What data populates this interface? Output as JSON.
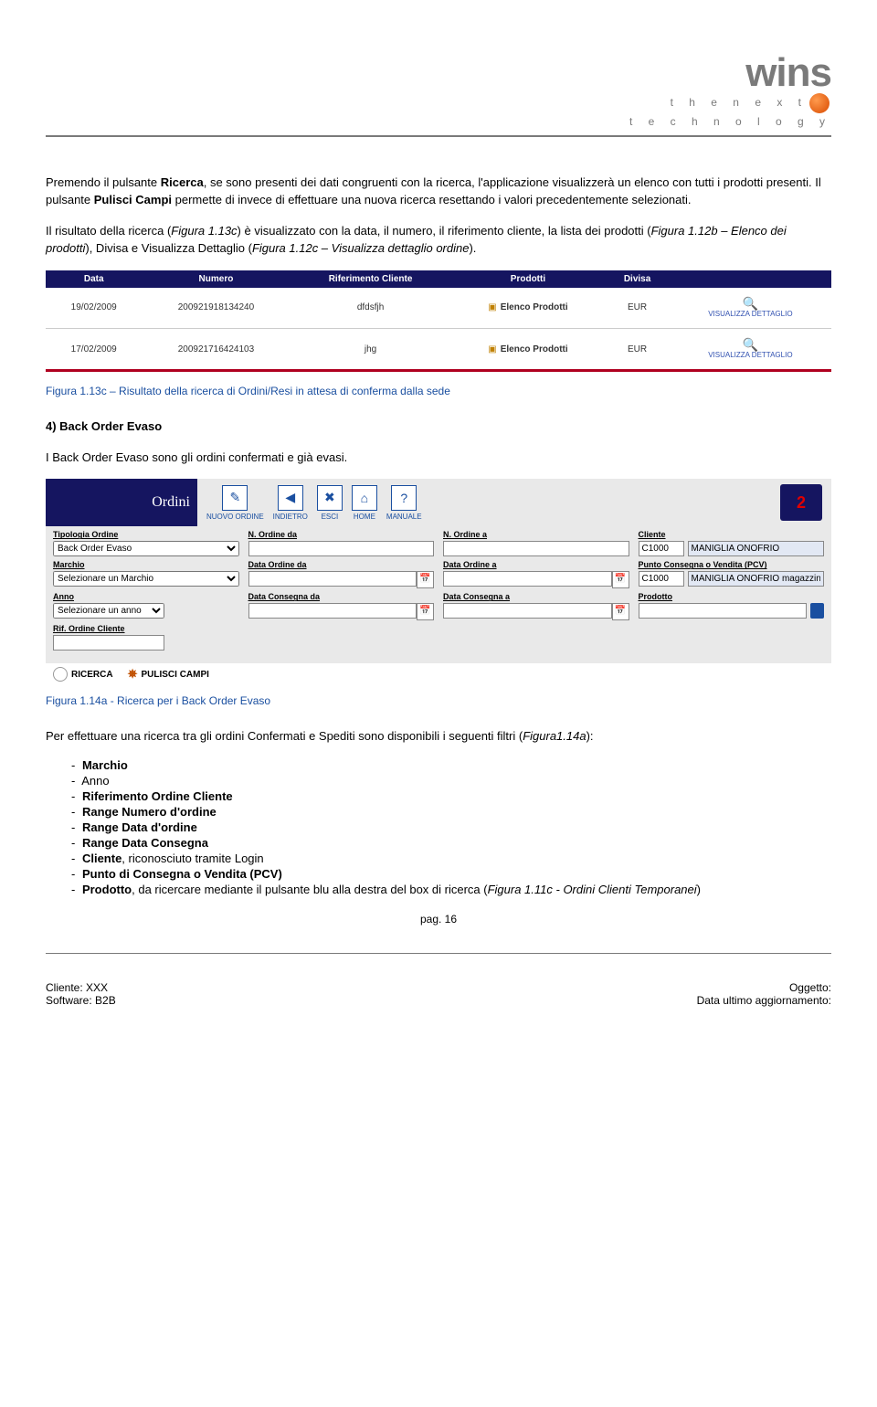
{
  "logo": {
    "main": "wins",
    "tagline1": "t h e   n e x t",
    "tagline2": "t e c h n o l o g y"
  },
  "para1": {
    "t1": "Premendo il pulsante ",
    "b1": "Ricerca",
    "t2": ", se sono presenti dei dati congruenti con la ricerca, l'applicazione visualizzerà un elenco con tutti i prodotti presenti. Il pulsante ",
    "b2": "Pulisci Campi",
    "t3": " permette di invece di effettuare una nuova ricerca resettando i valori precedentemente selezionati."
  },
  "para2": {
    "t1": "Il risultato della ricerca (",
    "i1": "Figura 1.13c",
    "t2": ") è visualizzato con la data, il numero, il riferimento cliente, la lista dei prodotti (",
    "i2": "Figura 1.12b – Elenco dei prodotti",
    "t3": "), Divisa e Visualizza Dettaglio (",
    "i3": "Figura 1.12c – Visualizza dettaglio ordine",
    "t4": ")."
  },
  "tbl1": {
    "headers": [
      "Data",
      "Numero",
      "Riferimento Cliente",
      "Prodotti",
      "Divisa",
      ""
    ],
    "rows": [
      {
        "data": "19/02/2009",
        "num": "200921918134240",
        "rif": "dfdsfjh",
        "prod": "Elenco Prodotti",
        "div": "EUR",
        "vis": "VISUALIZZA DETTAGLIO"
      },
      {
        "data": "17/02/2009",
        "num": "200921716424103",
        "rif": "jhg",
        "prod": "Elenco Prodotti",
        "div": "EUR",
        "vis": "VISUALIZZA DETTAGLIO"
      }
    ]
  },
  "cap1": "Figura 1.13c – Risultato della ricerca di Ordini/Resi in attesa di conferma dalla sede",
  "h4": "4) Back Order Evaso",
  "para3": "I Back Order Evaso sono gli ordini confermati e già evasi.",
  "scr2": {
    "title": "Ordini",
    "icons": [
      {
        "lbl": "NUOVO ORDINE",
        "g": "✎"
      },
      {
        "lbl": "INDIETRO",
        "g": "◀"
      },
      {
        "lbl": "ESCI",
        "g": "✖"
      },
      {
        "lbl": "HOME",
        "g": "⌂"
      },
      {
        "lbl": "MANUALE",
        "g": "?"
      }
    ],
    "labels": {
      "tipologia": "Tipologia Ordine",
      "marchio": "Marchio",
      "anno": "Anno",
      "rif": "Rif. Ordine Cliente",
      "norda": "N. Ordine da",
      "nordb": "N. Ordine a",
      "dorda": "Data Ordine da",
      "dordb": "Data Ordine a",
      "dconsa": "Data Consegna da",
      "dconsb": "Data Consegna a",
      "cliente": "Cliente",
      "pcv": "Punto Consegna o Vendita (PCV)",
      "prod": "Prodotto"
    },
    "values": {
      "tipologia": "Back Order Evaso",
      "marchio": "Selezionare un Marchio",
      "anno": "Selezionare un anno",
      "cliente_code": "C1000",
      "cliente_name": "MANIGLIA ONOFRIO",
      "pcv_code": "C1000",
      "pcv_name": "MANIGLIA ONOFRIO magazzino"
    },
    "btn1": "RICERCA",
    "btn2": "PULISCI CAMPI"
  },
  "cap2": "Figura 1.14a - Ricerca per i Back Order Evaso",
  "para4": {
    "t1": "Per effettuare una ricerca tra gli ordini Confermati e Spediti sono disponibili i seguenti filtri (",
    "i1": "Figura1.14a",
    "t2": "):"
  },
  "filters": [
    {
      "b": "Marchio",
      "t": ""
    },
    {
      "b": "",
      "t": "Anno"
    },
    {
      "b": "Riferimento Ordine Cliente",
      "t": ""
    },
    {
      "b": "Range Numero d'ordine",
      "t": ""
    },
    {
      "b": "Range  Data d'ordine",
      "t": ""
    },
    {
      "b": "Range  Data Consegna",
      "t": ""
    },
    {
      "b": "Cliente",
      "t": ", riconosciuto tramite Login"
    },
    {
      "b": "Punto di Consegna o Vendita (PCV)",
      "t": ""
    },
    {
      "b": "Prodotto",
      "t": ", da ricercare mediante il pulsante blu alla destra del box di ricerca (",
      "i": "Figura 1.11c - Ordini Clienti Temporanei",
      "t2": ")"
    }
  ],
  "pageno": "pag. 16",
  "footer": {
    "l1": "Cliente: XXX",
    "l2": "Software: B2B",
    "r1": "Oggetto:",
    "r2": "Data ultimo aggiornamento:"
  }
}
